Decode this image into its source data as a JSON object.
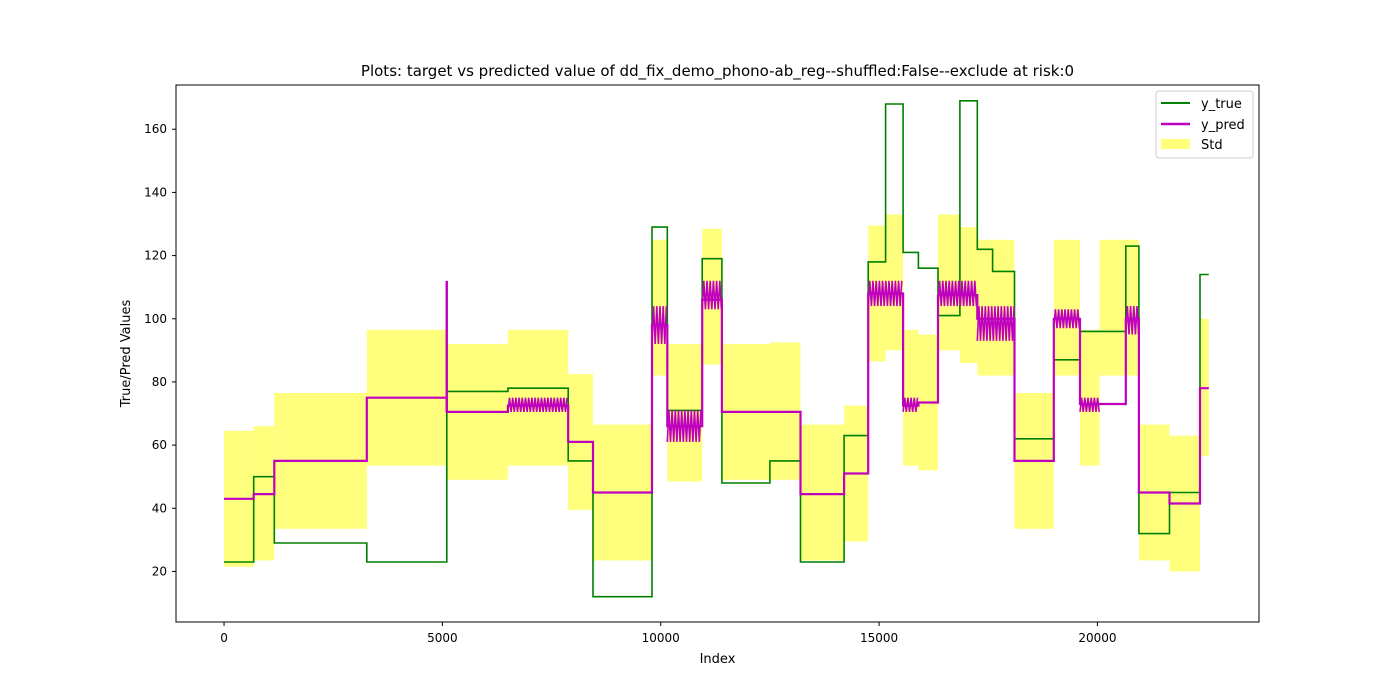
{
  "chart_data": {
    "type": "line",
    "title": "Plots: target vs predicted value of dd_fix_demo_phono-ab_reg--shuffled:False--exclude at risk:0",
    "xlabel": "Index",
    "ylabel": "True/Pred Values",
    "xlim": [
      -1100,
      23700
    ],
    "ylim": [
      4,
      174
    ],
    "xticks": [
      0,
      5000,
      10000,
      15000,
      20000
    ],
    "yticks": [
      20,
      40,
      60,
      80,
      100,
      120,
      140,
      160
    ],
    "grid": false,
    "legend_position": "top-right",
    "colors": {
      "y_true": "#008000",
      "y_pred": "#bf00bf",
      "std": "#ffff66"
    },
    "series": [
      {
        "name": "y_true",
        "step": true,
        "points": [
          [
            0,
            23
          ],
          [
            680,
            23
          ],
          [
            680,
            50
          ],
          [
            1150,
            50
          ],
          [
            1150,
            29
          ],
          [
            3270,
            29
          ],
          [
            3270,
            23
          ],
          [
            5100,
            23
          ],
          [
            5100,
            77
          ],
          [
            6500,
            77
          ],
          [
            6500,
            78
          ],
          [
            7880,
            78
          ],
          [
            7880,
            55
          ],
          [
            8450,
            55
          ],
          [
            8450,
            12
          ],
          [
            9800,
            12
          ],
          [
            9800,
            129
          ],
          [
            10150,
            129
          ],
          [
            10150,
            71
          ],
          [
            10950,
            71
          ],
          [
            10950,
            119
          ],
          [
            11400,
            119
          ],
          [
            11400,
            48
          ],
          [
            12500,
            48
          ],
          [
            12500,
            55
          ],
          [
            13200,
            55
          ],
          [
            13200,
            23
          ],
          [
            14200,
            23
          ],
          [
            14200,
            63
          ],
          [
            14750,
            63
          ],
          [
            14750,
            118
          ],
          [
            15150,
            118
          ],
          [
            15150,
            168
          ],
          [
            15550,
            168
          ],
          [
            15550,
            121
          ],
          [
            15900,
            121
          ],
          [
            15900,
            116
          ],
          [
            16350,
            116
          ],
          [
            16350,
            101
          ],
          [
            16850,
            101
          ],
          [
            16850,
            169
          ],
          [
            17250,
            169
          ],
          [
            17250,
            122
          ],
          [
            17600,
            122
          ],
          [
            17600,
            115
          ],
          [
            18100,
            115
          ],
          [
            18100,
            62
          ],
          [
            19000,
            62
          ],
          [
            19000,
            87
          ],
          [
            19600,
            87
          ],
          [
            19600,
            96
          ],
          [
            20050,
            96
          ],
          [
            20050,
            96
          ],
          [
            20650,
            96
          ],
          [
            20650,
            123
          ],
          [
            20950,
            123
          ],
          [
            20950,
            32
          ],
          [
            21650,
            32
          ],
          [
            21650,
            45
          ],
          [
            22350,
            45
          ],
          [
            22350,
            114
          ],
          [
            22550,
            114
          ]
        ]
      },
      {
        "name": "y_pred",
        "step": true,
        "points": [
          [
            0,
            43
          ],
          [
            680,
            43
          ],
          [
            680,
            44.5
          ],
          [
            1150,
            44.5
          ],
          [
            1150,
            55
          ],
          [
            3270,
            55
          ],
          [
            3270,
            75
          ],
          [
            5100,
            75
          ],
          [
            5100,
            70.5
          ],
          [
            6500,
            70.5
          ],
          [
            6500,
            72.5
          ],
          [
            7880,
            72.5
          ],
          [
            7880,
            61
          ],
          [
            8450,
            61
          ],
          [
            8450,
            45
          ],
          [
            9800,
            45
          ],
          [
            9800,
            98
          ],
          [
            10150,
            98
          ],
          [
            10150,
            66
          ],
          [
            10950,
            66
          ],
          [
            10950,
            106
          ],
          [
            11400,
            106
          ],
          [
            11400,
            70.5
          ],
          [
            12500,
            70.5
          ],
          [
            12500,
            70.5
          ],
          [
            13200,
            70.5
          ],
          [
            13200,
            44.5
          ],
          [
            14200,
            44.5
          ],
          [
            14200,
            51
          ],
          [
            14750,
            51
          ],
          [
            14750,
            108
          ],
          [
            15550,
            108
          ],
          [
            15550,
            72.5
          ],
          [
            15900,
            72.5
          ],
          [
            15900,
            73.5
          ],
          [
            16350,
            73.5
          ],
          [
            16350,
            107.5
          ],
          [
            17250,
            107.5
          ],
          [
            17250,
            100
          ],
          [
            18100,
            100
          ],
          [
            18100,
            55
          ],
          [
            19000,
            55
          ],
          [
            19000,
            100
          ],
          [
            19600,
            100
          ],
          [
            19600,
            73
          ],
          [
            20050,
            73
          ],
          [
            20050,
            73
          ],
          [
            20650,
            73
          ],
          [
            20650,
            100
          ],
          [
            20950,
            100
          ],
          [
            20950,
            45
          ],
          [
            21650,
            45
          ],
          [
            21650,
            41.5
          ],
          [
            22350,
            41.5
          ],
          [
            22350,
            78
          ],
          [
            22550,
            78
          ]
        ],
        "spike": {
          "x": 5100,
          "y_low": 70.5,
          "y_high": 112
        },
        "noisy_bands": [
          {
            "x0": 6500,
            "x1": 7880,
            "y_low": 70.5,
            "y_high": 75
          },
          {
            "x0": 9800,
            "x1": 10150,
            "y_low": 92,
            "y_high": 104
          },
          {
            "x0": 10150,
            "x1": 10950,
            "y_low": 61,
            "y_high": 71
          },
          {
            "x0": 10950,
            "x1": 11400,
            "y_low": 103,
            "y_high": 112
          },
          {
            "x0": 14750,
            "x1": 15550,
            "y_low": 104,
            "y_high": 112
          },
          {
            "x0": 15550,
            "x1": 15900,
            "y_low": 70.5,
            "y_high": 75
          },
          {
            "x0": 16350,
            "x1": 17250,
            "y_low": 104,
            "y_high": 112
          },
          {
            "x0": 17250,
            "x1": 18100,
            "y_low": 93,
            "y_high": 104
          },
          {
            "x0": 19000,
            "x1": 19600,
            "y_low": 97,
            "y_high": 103
          },
          {
            "x0": 19600,
            "x1": 20050,
            "y_low": 70.5,
            "y_high": 75
          },
          {
            "x0": 20650,
            "x1": 20950,
            "y_low": 95,
            "y_high": 104
          }
        ]
      },
      {
        "name": "Std",
        "type": "area",
        "segments": [
          {
            "x0": 0,
            "x1": 680,
            "low": 21.5,
            "high": 64.5
          },
          {
            "x0": 680,
            "x1": 1150,
            "low": 23.5,
            "high": 66
          },
          {
            "x0": 1150,
            "x1": 3270,
            "low": 33.5,
            "high": 76.5
          },
          {
            "x0": 3270,
            "x1": 5100,
            "low": 53.5,
            "high": 96.5
          },
          {
            "x0": 5100,
            "x1": 6500,
            "low": 49,
            "high": 92
          },
          {
            "x0": 6500,
            "x1": 7880,
            "low": 53.5,
            "high": 96.5
          },
          {
            "x0": 7880,
            "x1": 8450,
            "low": 39.5,
            "high": 82.5
          },
          {
            "x0": 8450,
            "x1": 9800,
            "low": 23.5,
            "high": 66.5
          },
          {
            "x0": 9800,
            "x1": 10150,
            "low": 82,
            "high": 125
          },
          {
            "x0": 10150,
            "x1": 10950,
            "low": 48.5,
            "high": 92
          },
          {
            "x0": 10950,
            "x1": 11400,
            "low": 85.5,
            "high": 128.5
          },
          {
            "x0": 11400,
            "x1": 12500,
            "low": 49,
            "high": 92
          },
          {
            "x0": 12500,
            "x1": 13200,
            "low": 49,
            "high": 92.5
          },
          {
            "x0": 13200,
            "x1": 14200,
            "low": 23.5,
            "high": 66.5
          },
          {
            "x0": 14200,
            "x1": 14750,
            "low": 29.5,
            "high": 72.5
          },
          {
            "x0": 14750,
            "x1": 15150,
            "low": 86.5,
            "high": 129.5
          },
          {
            "x0": 15150,
            "x1": 15550,
            "low": 90,
            "high": 133
          },
          {
            "x0": 15550,
            "x1": 15900,
            "low": 53.5,
            "high": 96.5
          },
          {
            "x0": 15900,
            "x1": 16350,
            "low": 52,
            "high": 95
          },
          {
            "x0": 16350,
            "x1": 16850,
            "low": 90,
            "high": 133
          },
          {
            "x0": 16850,
            "x1": 17250,
            "low": 86,
            "high": 129
          },
          {
            "x0": 17250,
            "x1": 18100,
            "low": 82,
            "high": 125
          },
          {
            "x0": 18100,
            "x1": 19000,
            "low": 33.5,
            "high": 76.5
          },
          {
            "x0": 19000,
            "x1": 19600,
            "low": 82,
            "high": 125
          },
          {
            "x0": 19600,
            "x1": 20050,
            "low": 53.5,
            "high": 96.5
          },
          {
            "x0": 20050,
            "x1": 20650,
            "low": 82,
            "high": 125
          },
          {
            "x0": 20650,
            "x1": 20950,
            "low": 82,
            "high": 125
          },
          {
            "x0": 20950,
            "x1": 21650,
            "low": 23.5,
            "high": 66.5
          },
          {
            "x0": 21650,
            "x1": 22350,
            "low": 20,
            "high": 63
          },
          {
            "x0": 22350,
            "x1": 22550,
            "low": 56.5,
            "high": 100
          }
        ]
      }
    ]
  }
}
